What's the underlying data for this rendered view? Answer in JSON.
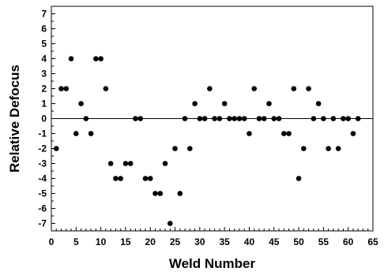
{
  "chart_data": {
    "type": "scatter",
    "title": "",
    "xlabel": "Weld Number",
    "ylabel": "Relative Defocus",
    "xlim": [
      0,
      65
    ],
    "ylim": [
      -7.5,
      7.5
    ],
    "x_ticks": [
      0,
      5,
      10,
      15,
      20,
      25,
      30,
      35,
      40,
      45,
      50,
      55,
      60,
      65
    ],
    "y_ticks": [
      -7,
      -6,
      -5,
      -4,
      -3,
      -2,
      -1,
      0,
      1,
      2,
      3,
      4,
      5,
      6,
      7
    ],
    "reference_line_y": 0,
    "grid": false,
    "legend": "none",
    "marker_color": "#000000",
    "series": [
      {
        "name": "",
        "x": [
          1,
          2,
          3,
          4,
          5,
          6,
          7,
          8,
          9,
          10,
          11,
          12,
          13,
          14,
          15,
          16,
          17,
          18,
          19,
          20,
          21,
          22,
          23,
          24,
          25,
          26,
          27,
          28,
          29,
          30,
          31,
          32,
          33,
          34,
          35,
          36,
          37,
          38,
          39,
          40,
          41,
          42,
          43,
          44,
          45,
          46,
          47,
          48,
          49,
          50,
          51,
          52,
          53,
          54,
          55,
          56,
          57,
          58,
          59,
          60,
          61,
          62
        ],
        "y": [
          -2,
          2,
          2,
          4,
          -1,
          1,
          0,
          -1,
          4,
          4,
          2,
          -3,
          -4,
          -4,
          -3,
          -3,
          0,
          0,
          -4,
          -4,
          -5,
          -5,
          -3,
          -7,
          -2,
          -5,
          0,
          -2,
          1,
          0,
          0,
          2,
          0,
          0,
          1,
          0,
          0,
          0,
          0,
          -1,
          2,
          0,
          0,
          1,
          0,
          0,
          -1,
          -1,
          2,
          -4,
          -2,
          2,
          0,
          1,
          0,
          -2,
          0,
          -2,
          0,
          0,
          -1,
          0
        ]
      }
    ]
  }
}
